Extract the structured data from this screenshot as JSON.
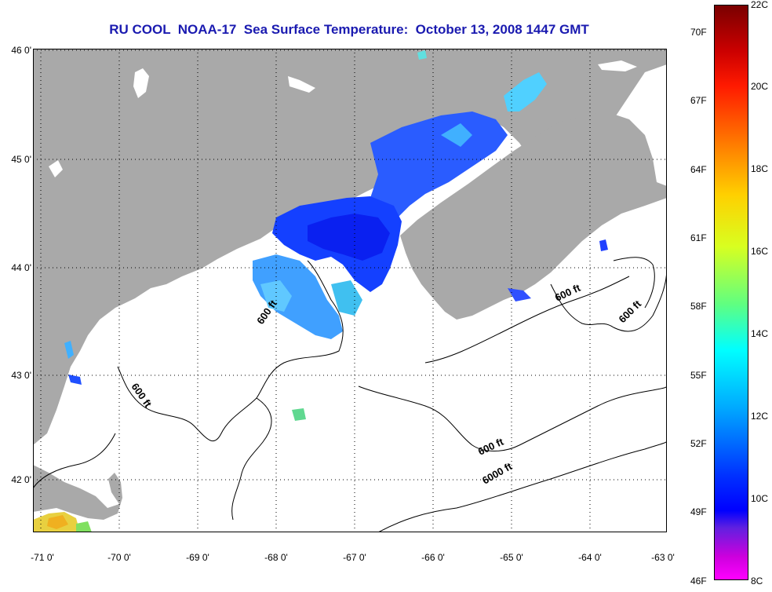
{
  "title": "RU COOL  NOAA-17  Sea Surface Temperature:  October 13, 2008 1447 GMT",
  "map": {
    "lat_labels": [
      "46 0'",
      "45 0'",
      "44 0'",
      "43 0'",
      "42 0'"
    ],
    "lon_labels": [
      "-71 0'",
      "-70 0'",
      "-69 0'",
      "-68 0'",
      "-67 0'",
      "-66 0'",
      "-65 0'",
      "-64 0'",
      "-63 0'"
    ],
    "contour_labels": [
      "600 ft",
      "600 ft",
      "600 ft",
      "600 ft",
      "600 ft",
      "6000 ft"
    ],
    "colors": {
      "land": "#a9a9a9",
      "ocean": "#ffffff",
      "grid": "#000000",
      "contour": "#000000"
    }
  },
  "colorbar": {
    "fahrenheit_labels": [
      "70F",
      "67F",
      "64F",
      "61F",
      "58F",
      "55F",
      "52F",
      "49F",
      "46F"
    ],
    "celsius_labels": [
      "22C",
      "20C",
      "18C",
      "16C",
      "14C",
      "12C",
      "10C",
      "8C"
    ]
  }
}
